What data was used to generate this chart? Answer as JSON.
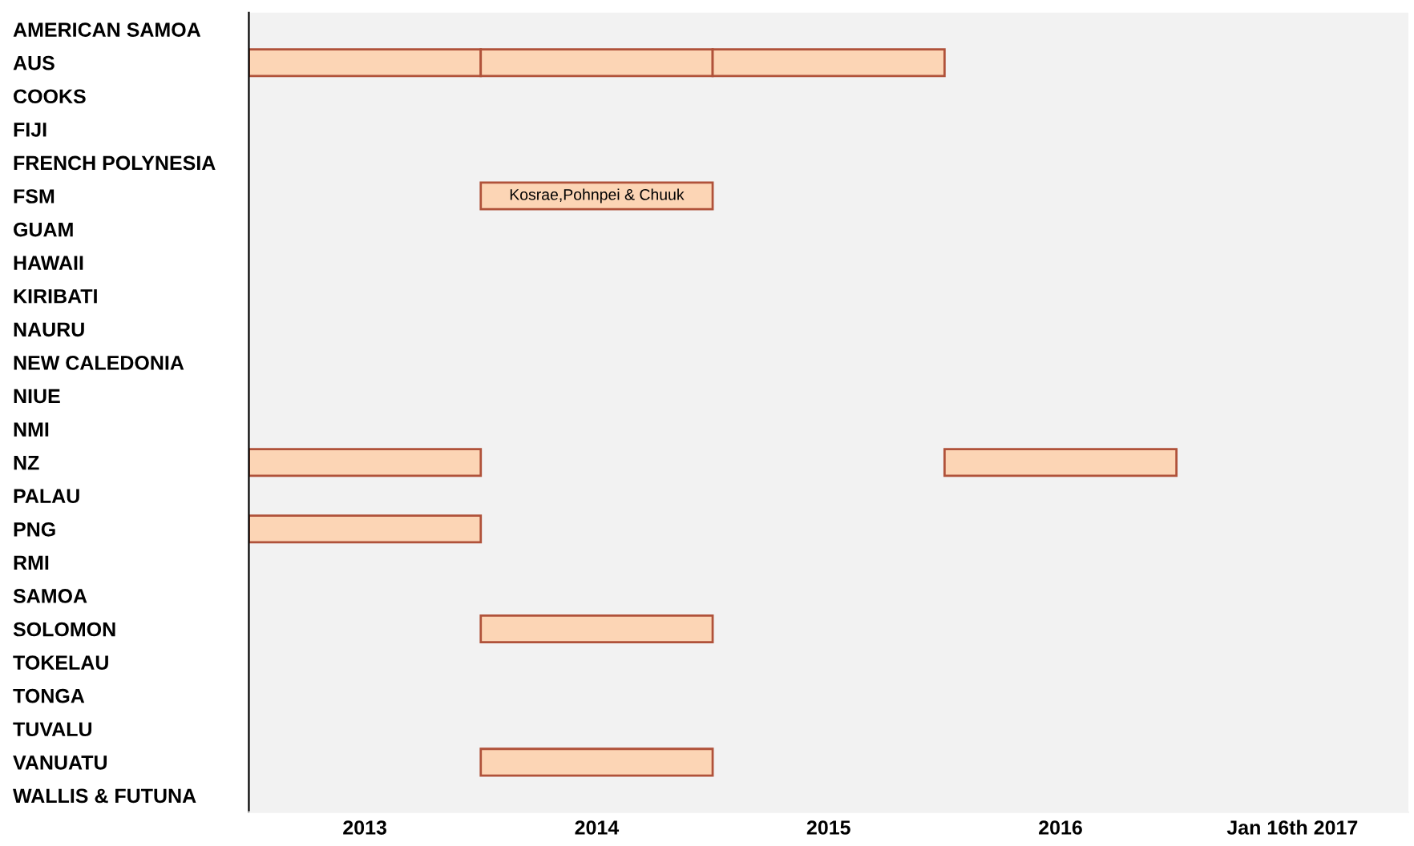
{
  "chart_data": {
    "type": "bar",
    "orientation": "horizontal",
    "categories": [
      "AMERICAN SAMOA",
      "AUS",
      "COOKS",
      "FIJI",
      "FRENCH POLYNESIA",
      "FSM",
      "GUAM",
      "HAWAII",
      "KIRIBATI",
      "NAURU",
      "NEW CALEDONIA",
      "NIUE",
      "NMI",
      "NZ",
      "PALAU",
      "PNG",
      "RMI",
      "SAMOA",
      "SOLOMON",
      "TOKELAU",
      "TONGA",
      "TUVALU",
      "VANUATU",
      "WALLIS & FUTUNA"
    ],
    "series": [
      {
        "color": "#fcd5b5",
        "values": [
          null,
          1,
          null,
          null,
          null,
          null,
          null,
          null,
          null,
          null,
          null,
          null,
          null,
          1,
          null,
          1,
          null,
          null,
          null,
          null,
          null,
          null,
          null,
          null
        ],
        "base": [
          null,
          2012.5,
          null,
          null,
          null,
          null,
          null,
          null,
          null,
          null,
          null,
          null,
          null,
          2012.5,
          null,
          2012.5,
          null,
          null,
          null,
          null,
          null,
          null,
          null,
          null
        ]
      },
      {
        "color": "#fcd5b5",
        "values": [
          null,
          1,
          null,
          null,
          null,
          1,
          null,
          null,
          null,
          null,
          null,
          null,
          null,
          null,
          null,
          null,
          null,
          null,
          1,
          null,
          null,
          null,
          1,
          null
        ],
        "base": [
          null,
          2013.5,
          null,
          null,
          null,
          2013.5,
          null,
          null,
          null,
          null,
          null,
          null,
          null,
          null,
          null,
          null,
          null,
          null,
          2013.5,
          null,
          null,
          null,
          2013.5,
          null
        ]
      },
      {
        "color": "#fcd5b5",
        "values": [
          null,
          1,
          null,
          null,
          null,
          null,
          null,
          null,
          null,
          null,
          null,
          null,
          null,
          null,
          null,
          null,
          null,
          null,
          null,
          null,
          null,
          null,
          null,
          null
        ],
        "base": [
          null,
          2014.5,
          null,
          null,
          null,
          null,
          null,
          null,
          null,
          null,
          null,
          null,
          null,
          null,
          null,
          null,
          null,
          null,
          null,
          null,
          null,
          null,
          null,
          null
        ]
      },
      {
        "color": "#fcd5b5",
        "values": [
          null,
          null,
          null,
          null,
          null,
          null,
          null,
          null,
          null,
          null,
          null,
          null,
          null,
          1,
          null,
          null,
          null,
          null,
          null,
          null,
          null,
          null,
          null,
          null
        ],
        "base": [
          null,
          null,
          null,
          null,
          null,
          null,
          null,
          null,
          null,
          null,
          null,
          null,
          null,
          2015.5,
          null,
          null,
          null,
          null,
          null,
          null,
          null,
          null,
          null,
          null
        ]
      }
    ],
    "xlim": [
      2012.5,
      2017.5
    ],
    "xticks": [
      2013,
      2014,
      2015,
      2016,
      {
        "value": 2017,
        "label": "Jan 16th 2017"
      }
    ],
    "annotations": [
      {
        "text": "Kosrae,Pohnpei & Chuuk",
        "x": 2014,
        "y": "FSM"
      }
    ],
    "grid": false,
    "legend": false
  }
}
